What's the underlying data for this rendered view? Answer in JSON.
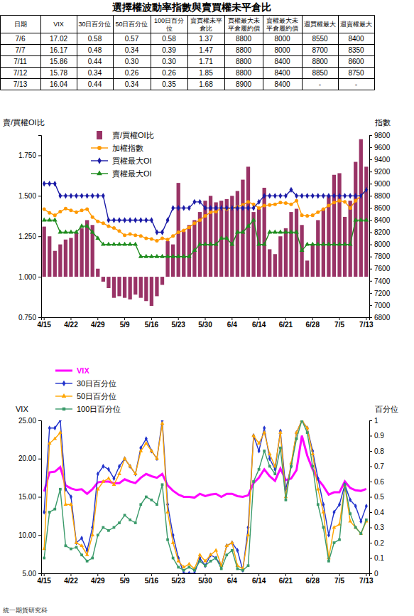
{
  "table": {
    "title": "選擇權波動率指數與賣買權未平倉比",
    "header": [
      "日期",
      "VIX",
      "30日百分位",
      "50日百分位",
      "100日百分位",
      "賣買權未平倉比",
      "買權最大未平倉履約價",
      "賣權最大未平倉履約價",
      "週買權最大",
      "週賣權最大"
    ],
    "rows": [
      [
        "7/6",
        "17.02",
        "0.58",
        "0.57",
        "0.58",
        "1.37",
        "8800",
        "8000",
        "8550",
        "8400"
      ],
      [
        "7/7",
        "16.17",
        "0.48",
        "0.34",
        "0.39",
        "1.47",
        "8800",
        "8000",
        "8700",
        "8350"
      ],
      [
        "7/11",
        "15.86",
        "0.44",
        "0.30",
        "0.30",
        "1.71",
        "8800",
        "8400",
        "8800",
        "8600"
      ],
      [
        "7/12",
        "15.78",
        "0.34",
        "0.26",
        "0.26",
        "1.85",
        "8800",
        "8400",
        "8850",
        "8750"
      ],
      [
        "7/13",
        "16.04",
        "0.44",
        "0.34",
        "0.35",
        "1.68",
        "8900",
        "8400",
        "-",
        "-"
      ]
    ]
  },
  "chart_data": [
    {
      "type": "bar",
      "y_label": "賣/買權OI比",
      "y2_label": "指數",
      "categories": [
        "4/15",
        null,
        null,
        null,
        null,
        "4/22",
        null,
        null,
        null,
        null,
        "4/29",
        null,
        null,
        null,
        null,
        "5/9",
        null,
        null,
        null,
        null,
        "5/16",
        null,
        null,
        null,
        null,
        "5/23",
        null,
        null,
        null,
        null,
        "5/30",
        null,
        null,
        null,
        null,
        "6/4",
        null,
        null,
        null,
        null,
        "6/14",
        null,
        null,
        null,
        null,
        "6/21",
        null,
        null,
        null,
        null,
        "6/28",
        null,
        null,
        null,
        null,
        "7/5",
        null,
        null,
        null,
        null,
        "7/13"
      ],
      "ylim": [
        0.75,
        1.875
      ],
      "yticks": [
        {
          "value": 0.75,
          "label": "0.750"
        },
        {
          "value": 1,
          "label": "1.000"
        },
        {
          "value": 1.25,
          "label": "1.250"
        },
        {
          "value": 1.5,
          "label": "1.500"
        },
        {
          "value": 1.75,
          "label": "1.750"
        }
      ],
      "y2lim": [
        6800,
        9800
      ],
      "y2ticks": [
        6800,
        7000,
        7200,
        7400,
        7600,
        7800,
        8000,
        8200,
        8400,
        8600,
        8800,
        9000,
        9200,
        9400,
        9600,
        9800
      ],
      "grid": false,
      "legend": "top-left",
      "series": [
        {
          "name": "賣/買權OI比",
          "type": "bar",
          "color": "#993366",
          "baseline": 1,
          "values": [
            1.31,
            1.25,
            1.16,
            1.2,
            1.23,
            1.24,
            1.27,
            1.3,
            1.35,
            1.32,
            1.05,
            0.97,
            0.93,
            0.87,
            0.88,
            0.87,
            0.86,
            0.89,
            0.87,
            0.85,
            0.82,
            0.88,
            0.95,
            1.22,
            1.2,
            1.58,
            1.28,
            1.32,
            1.35,
            1.4,
            1.47,
            1.5,
            1.46,
            1.47,
            1.48,
            1.5,
            1.53,
            1.6,
            1.68,
            1.4,
            1.42,
            1.55,
            1.17,
            1.14,
            1.25,
            1.3,
            1.4,
            1.42,
            1.32,
            1.1,
            1.2,
            1.35,
            1.42,
            1.5,
            1.63,
            1.64,
            1.37,
            1.47,
            1.71,
            1.85,
            1.68
          ]
        },
        {
          "name": "加權指數",
          "type": "line",
          "color": "#ff9900",
          "marker": "circle",
          "axis": "y2",
          "values": [
            8580,
            8520,
            8480,
            8540,
            8590,
            8560,
            8530,
            8560,
            8580,
            8450,
            8380,
            8350,
            8300,
            8270,
            8220,
            8150,
            8170,
            8150,
            8140,
            8100,
            8090,
            8060,
            8100,
            8080,
            8140,
            8200,
            8230,
            8280,
            8350,
            8400,
            8470,
            8530,
            8540,
            8600,
            8580,
            8600,
            8620,
            8650,
            8700,
            8660,
            8600,
            8640,
            8650,
            8660,
            8690,
            8680,
            8660,
            8720,
            8480,
            8470,
            8480,
            8530,
            8580,
            8640,
            8690,
            8720,
            8700,
            8600,
            8720,
            8800,
            8900
          ]
        },
        {
          "name": "買權最大OI",
          "type": "line",
          "color": "#1a1aa6",
          "marker": "diamond",
          "axis": "y2",
          "values": [
            9000,
            9000,
            9000,
            8800,
            8800,
            8800,
            8800,
            8800,
            8800,
            8800,
            8800,
            8800,
            8400,
            8400,
            8400,
            8400,
            8400,
            8400,
            8400,
            8400,
            8400,
            8200,
            8200,
            8400,
            8600,
            8600,
            8600,
            8600,
            8700,
            8700,
            8600,
            8600,
            8600,
            8600,
            8600,
            8600,
            8600,
            8600,
            8600,
            8600,
            8700,
            8800,
            8800,
            8800,
            8800,
            8800,
            8900,
            8800,
            8800,
            8800,
            8800,
            8800,
            8800,
            8800,
            8800,
            8800,
            8800,
            8800,
            8800,
            8800,
            8900
          ]
        },
        {
          "name": "賣權最大OI",
          "type": "line",
          "color": "#1e8c1e",
          "marker": "triangle",
          "axis": "y2",
          "values": [
            8400,
            8400,
            8400,
            8200,
            8200,
            8200,
            8200,
            8300,
            8300,
            8200,
            8100,
            8000,
            8000,
            8000,
            8000,
            8000,
            8000,
            8000,
            7800,
            7800,
            7800,
            7800,
            7800,
            7800,
            7800,
            7800,
            7800,
            7800,
            7900,
            8000,
            8000,
            8000,
            8000,
            8100,
            8100,
            8000,
            8200,
            8200,
            8300,
            8400,
            8000,
            8000,
            8200,
            8200,
            8200,
            8200,
            8200,
            8200,
            7900,
            8000,
            8000,
            8000,
            8000,
            8000,
            8000,
            8000,
            8000,
            8000,
            8400,
            8400,
            8400
          ]
        }
      ]
    },
    {
      "type": "line",
      "y_label": "VIX",
      "y2_label": "百分位",
      "categories": [
        "4/15",
        null,
        null,
        null,
        null,
        "4/22",
        null,
        null,
        null,
        null,
        "4/29",
        null,
        null,
        null,
        null,
        "5/9",
        null,
        null,
        null,
        null,
        "5/16",
        null,
        null,
        null,
        null,
        "5/23",
        null,
        null,
        null,
        null,
        "5/30",
        null,
        null,
        null,
        null,
        "6/4",
        null,
        null,
        null,
        null,
        "6/14",
        null,
        null,
        null,
        null,
        "6/21",
        null,
        null,
        null,
        null,
        "6/28",
        null,
        null,
        null,
        null,
        "7/5",
        null,
        null,
        null,
        null,
        "7/13"
      ],
      "ylim": [
        5,
        25
      ],
      "yticks": [
        {
          "value": 5,
          "label": "5.00"
        },
        {
          "value": 10,
          "label": "10.00"
        },
        {
          "value": 15,
          "label": "15.00"
        },
        {
          "value": 20,
          "label": "20.00"
        },
        {
          "value": 25,
          "label": "25.00"
        }
      ],
      "y2lim": [
        0,
        1
      ],
      "y2ticks": [
        0,
        0.1,
        0.2,
        0.3,
        0.4,
        0.5,
        0.6,
        0.7,
        0.8,
        0.9,
        1
      ],
      "grid": false,
      "legend": "top-left",
      "series": [
        {
          "name": "VIX",
          "color": "#ff00ff",
          "marker": "none",
          "values": [
            15.7,
            18.2,
            18.3,
            18.9,
            16.5,
            16.1,
            15.9,
            16,
            15.4,
            16,
            16.9,
            17,
            17,
            16.8,
            16.8,
            17.3,
            17,
            16.8,
            17.5,
            18,
            17.7,
            17.5,
            18,
            16.5,
            15.8,
            15.3,
            15,
            15,
            14.9,
            15.4,
            15.1,
            15.3,
            15.4,
            15,
            15.4,
            15.4,
            15.1,
            15,
            15.2,
            16.8,
            17.5,
            18.6,
            17.7,
            17.1,
            18.7,
            17.2,
            17.4,
            18.5,
            23,
            20.4,
            18.6,
            17.3,
            16.4,
            15.3,
            15.6,
            15.6,
            17.02,
            16.17,
            15.86,
            15.78,
            16.04
          ]
        },
        {
          "name": "30日百分位",
          "color": "#2233cc",
          "marker": "diamond",
          "axis": "y2",
          "values": [
            0.4,
            0.95,
            0.95,
            1,
            0.55,
            0.5,
            0.2,
            0.23,
            0.15,
            0.3,
            0.65,
            0.7,
            0.68,
            0.62,
            0.7,
            0.75,
            0.7,
            0.65,
            0.82,
            0.88,
            0.8,
            0.75,
            1,
            0.45,
            0.25,
            0.1,
            0,
            0,
            0,
            0.1,
            0.05,
            0.12,
            0.1,
            0.05,
            0.18,
            0.2,
            0.15,
            0.02,
            0.3,
            0.9,
            0.8,
            0.95,
            0.75,
            0.68,
            0.93,
            0.55,
            0.7,
            0.92,
            1,
            0.95,
            0.8,
            0.62,
            0.45,
            0.25,
            0.4,
            0.45,
            0.58,
            0.48,
            0.44,
            0.34,
            0.44
          ]
        },
        {
          "name": "50日百分位",
          "color": "#ffa500",
          "marker": "triangle",
          "axis": "y2",
          "values": [
            0.16,
            0.85,
            0.88,
            0.92,
            0.45,
            0.45,
            0.2,
            0.18,
            0.12,
            0.25,
            0.55,
            0.6,
            0.62,
            0.58,
            0.65,
            0.75,
            0.7,
            0.65,
            0.8,
            0.85,
            0.8,
            0.75,
            0.98,
            0.4,
            0.2,
            0.08,
            0.04,
            0.06,
            0.03,
            0.12,
            0.08,
            0.12,
            0.15,
            0.05,
            0.18,
            0.2,
            0.05,
            0.03,
            0.25,
            0.9,
            0.85,
            0.92,
            0.78,
            0.7,
            0.92,
            0.5,
            0.72,
            0.92,
            1,
            0.95,
            0.78,
            0.55,
            0.4,
            0.1,
            0.3,
            0.32,
            0.57,
            0.34,
            0.3,
            0.26,
            0.34
          ]
        },
        {
          "name": "100日百分位",
          "color": "#3a9a6a",
          "marker": "square",
          "axis": "y2",
          "values": [
            0.1,
            0.4,
            0.42,
            0.55,
            0.18,
            0.16,
            0.17,
            0.12,
            0.08,
            0.1,
            0.25,
            0.3,
            0.28,
            0.3,
            0.33,
            0.38,
            0.35,
            0.33,
            0.45,
            0.5,
            0.48,
            0.45,
            0.58,
            0.22,
            0.1,
            0.04,
            0.02,
            0.04,
            0.02,
            0.08,
            0.05,
            0.08,
            0.1,
            0.03,
            0.12,
            0.15,
            0.03,
            0.02,
            0.05,
            0.6,
            0.68,
            0.8,
            0.7,
            0.65,
            0.82,
            0.48,
            0.7,
            0.88,
            1,
            0.92,
            0.7,
            0.45,
            0.3,
            0.08,
            0.2,
            0.22,
            0.58,
            0.39,
            0.3,
            0.26,
            0.35
          ]
        }
      ]
    }
  ],
  "footer": "統一期貨研究科"
}
